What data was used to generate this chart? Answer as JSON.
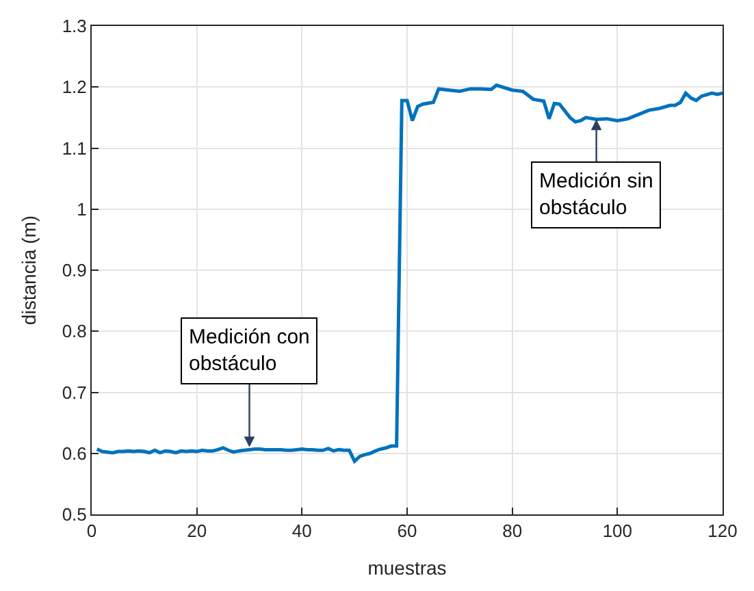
{
  "chart_data": {
    "type": "line",
    "xlabel": "muestras",
    "ylabel": "distancia (m)",
    "x": [
      1,
      2,
      3,
      4,
      5,
      6,
      7,
      8,
      9,
      10,
      11,
      12,
      13,
      14,
      15,
      16,
      17,
      18,
      19,
      20,
      21,
      22,
      23,
      24,
      25,
      26,
      27,
      28,
      29,
      30,
      31,
      32,
      33,
      34,
      35,
      36,
      37,
      38,
      39,
      40,
      41,
      42,
      43,
      44,
      45,
      46,
      47,
      48,
      49,
      50,
      51,
      52,
      53,
      54,
      55,
      56,
      57,
      58,
      59,
      60,
      61,
      62,
      63,
      65,
      66,
      68,
      70,
      72,
      74,
      76,
      77,
      80,
      82,
      84,
      86,
      87,
      88,
      89,
      91,
      92,
      93,
      94,
      96,
      98,
      100,
      102,
      104,
      106,
      108,
      110,
      111,
      112,
      113,
      114,
      115,
      116,
      118,
      119,
      120
    ],
    "series": [
      {
        "color": "#0072bd",
        "values": [
          0.607,
          0.603,
          0.602,
          0.601,
          0.603,
          0.603,
          0.604,
          0.603,
          0.604,
          0.603,
          0.601,
          0.605,
          0.601,
          0.604,
          0.603,
          0.601,
          0.604,
          0.603,
          0.604,
          0.603,
          0.605,
          0.604,
          0.604,
          0.606,
          0.609,
          0.605,
          0.602,
          0.604,
          0.605,
          0.606,
          0.607,
          0.607,
          0.606,
          0.606,
          0.606,
          0.606,
          0.605,
          0.605,
          0.606,
          0.607,
          0.606,
          0.606,
          0.605,
          0.605,
          0.608,
          0.604,
          0.606,
          0.605,
          0.605,
          0.587,
          0.595,
          0.598,
          0.6,
          0.604,
          0.607,
          0.609,
          0.612,
          0.612,
          1.178,
          1.178,
          1.145,
          1.168,
          1.172,
          1.175,
          1.197,
          1.195,
          1.193,
          1.197,
          1.197,
          1.196,
          1.203,
          1.195,
          1.193,
          1.18,
          1.177,
          1.148,
          1.173,
          1.172,
          1.15,
          1.143,
          1.145,
          1.15,
          1.147,
          1.148,
          1.145,
          1.148,
          1.155,
          1.162,
          1.165,
          1.17,
          1.17,
          1.175,
          1.19,
          1.182,
          1.178,
          1.185,
          1.19,
          1.188,
          1.19
        ]
      }
    ],
    "xlim": [
      0,
      120
    ],
    "xticks": [
      0,
      20,
      40,
      60,
      80,
      100,
      120
    ],
    "ylim": [
      0.5,
      1.3
    ],
    "yticks": [
      0.5,
      0.6,
      0.7,
      0.8,
      0.9,
      1,
      1.1,
      1.2,
      1.3
    ],
    "grid": true,
    "marker": "none",
    "line_style": "solid",
    "annotations": [
      {
        "text": "Medición con\nobstáculo",
        "x": 30,
        "y": 0.61
      },
      {
        "text": "Medición sin\nobstáculo",
        "x": 96,
        "y": 1.147
      }
    ]
  }
}
